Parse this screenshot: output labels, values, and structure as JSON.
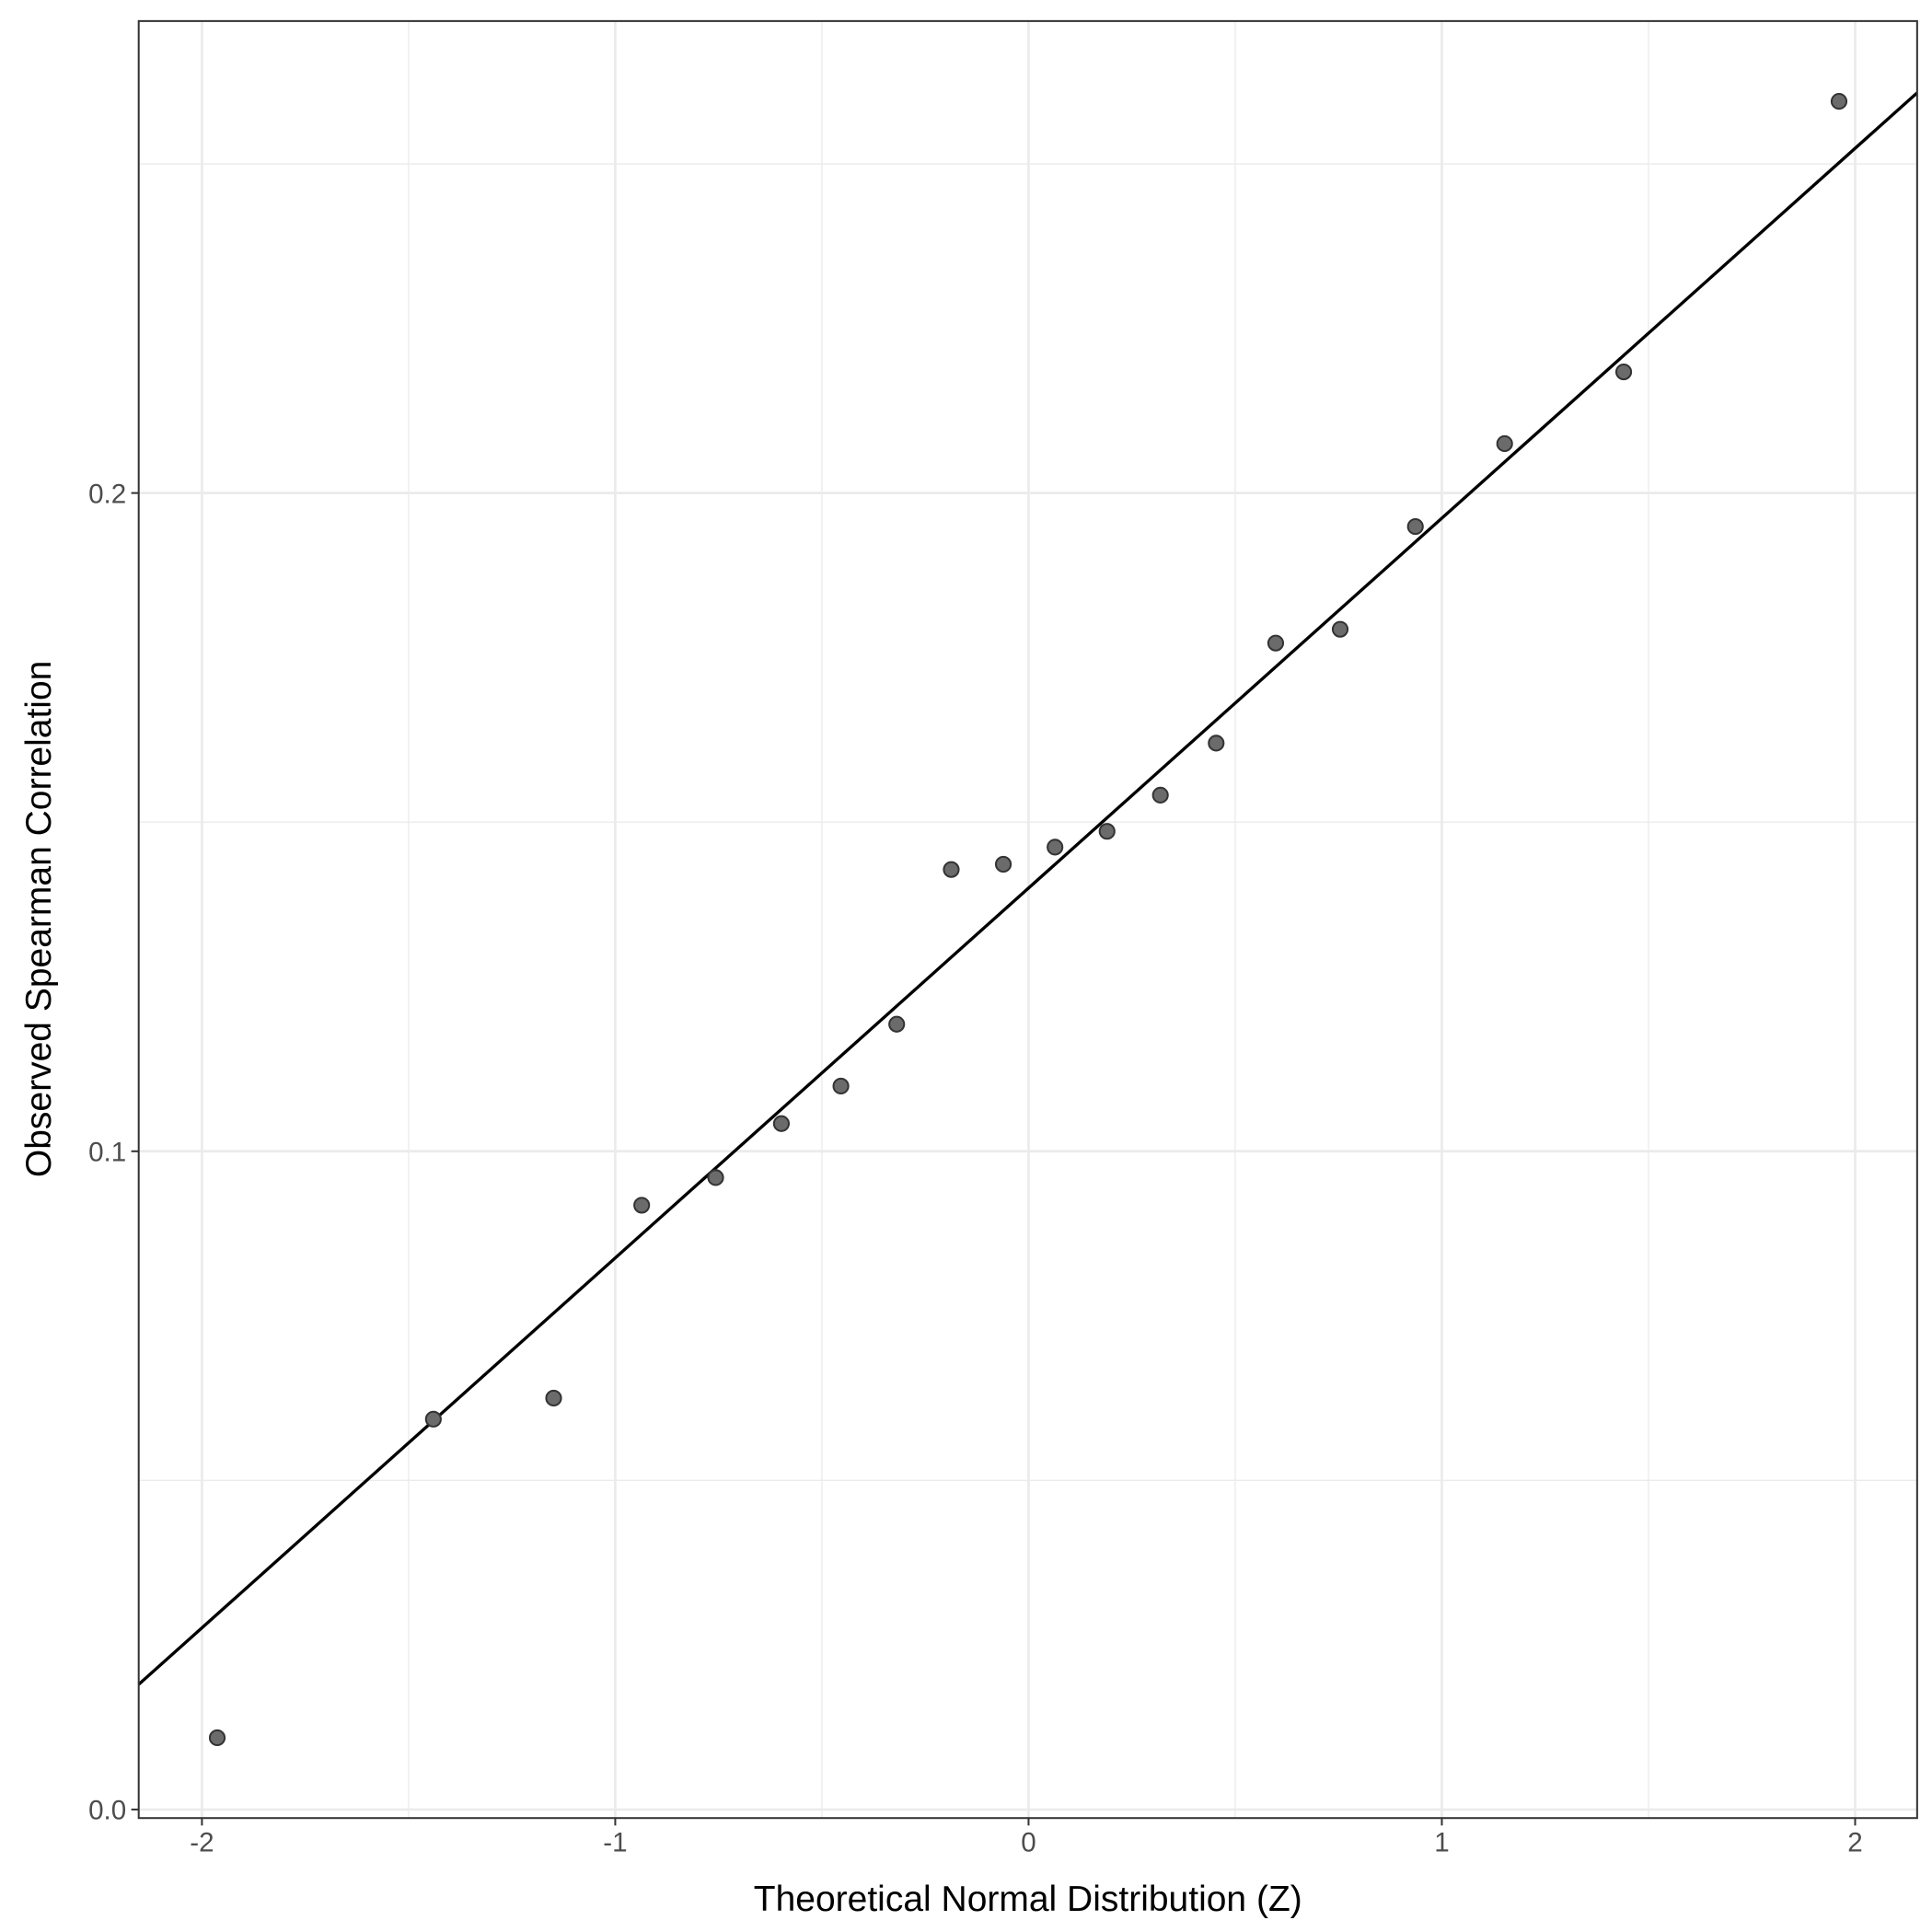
{
  "chart_data": {
    "type": "scatter",
    "x_label": "Theoretical Normal Distribution (Z)",
    "y_label": "Observed Spearman Correlation",
    "xlim": [
      -2.153,
      2.15
    ],
    "ylim": [
      -0.0013,
      0.2717
    ],
    "xticks": [
      -2,
      -1,
      0,
      1,
      2
    ],
    "yticks": [
      {
        "value": 0,
        "label": "0.0"
      },
      {
        "value": 0.1,
        "label": "0.1"
      },
      {
        "value": 0.2,
        "label": "0.2"
      }
    ],
    "minor_xticks": [
      -1.5,
      -0.5,
      0.5,
      1.5
    ],
    "minor_yticks": [
      0.05,
      0.15,
      0.25
    ],
    "grid": true,
    "series": [
      {
        "color": "#6b6b6b",
        "x": [
          -1.963,
          -1.44,
          -1.149,
          -0.936,
          -0.757,
          -0.598,
          -0.454,
          -0.319,
          -0.187,
          -0.061,
          0.064,
          0.19,
          0.319,
          0.454,
          0.598,
          0.754,
          0.936,
          1.152,
          1.44,
          1.961
        ],
        "values": [
          0.0109,
          0.0593,
          0.0625,
          0.0918,
          0.096,
          0.1042,
          0.1099,
          0.1193,
          0.1428,
          0.1436,
          0.1462,
          0.1486,
          0.1541,
          0.162,
          0.1772,
          0.1793,
          0.1949,
          0.2075,
          0.2184,
          0.2595
        ]
      }
    ],
    "reference_line": {
      "color": "#000000",
      "x": [
        -2.153,
        2.15
      ],
      "values": [
        0.019,
        0.2608
      ]
    }
  }
}
